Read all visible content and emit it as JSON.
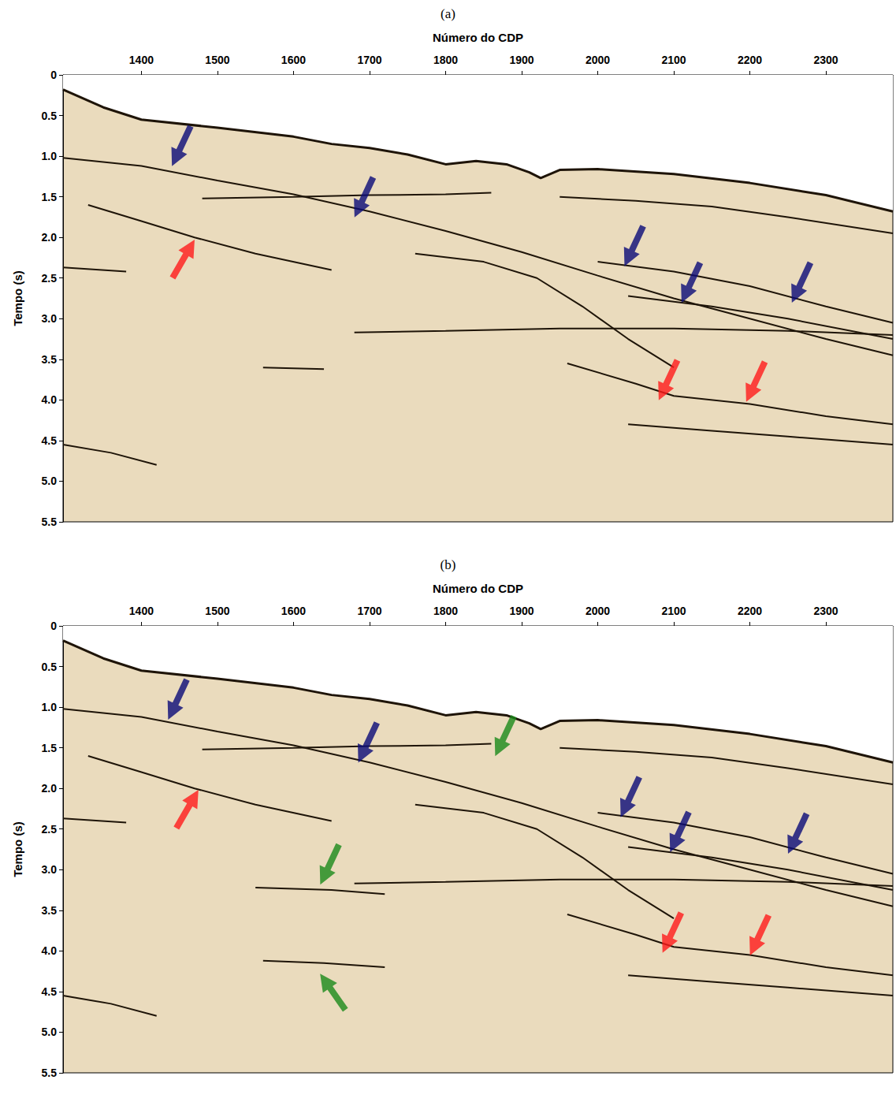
{
  "chart_data": [
    {
      "type": "line",
      "title": "(a)",
      "x_label": "Número do CDP",
      "y_label": "Tempo (s)",
      "xlim": [
        1297,
        2388
      ],
      "xticks": [
        1400,
        1500,
        1600,
        1700,
        1800,
        1900,
        2000,
        2100,
        2200,
        2300
      ],
      "ylim": [
        0,
        5.5
      ],
      "yticks": [
        0,
        0.5,
        {
          "value": 1,
          "label": "1.0"
        },
        1.5,
        {
          "value": 2,
          "label": "2.0"
        },
        2.5,
        {
          "value": 3,
          "label": "3.0"
        },
        3.5,
        {
          "value": 4,
          "label": "4.0"
        },
        4.5,
        {
          "value": 5,
          "label": "5.0"
        },
        5.5
      ],
      "grid": false,
      "series": [
        {
          "type": "line",
          "color": "#1e1408",
          "x": [
            1297,
            1350,
            1400,
            1500,
            1600,
            1650,
            1700,
            1750,
            1800,
            1840,
            1880,
            1910,
            1925,
            1950,
            2000,
            2100,
            2200,
            2300,
            2388
          ],
          "values": [
            0.18,
            0.4,
            0.55,
            0.65,
            0.76,
            0.85,
            0.9,
            0.98,
            1.1,
            1.06,
            1.1,
            1.2,
            1.27,
            1.17,
            1.16,
            1.22,
            1.33,
            1.48,
            1.68
          ]
        },
        {
          "type": "line",
          "color": "#1e1408",
          "x": [
            1297,
            1400,
            1500,
            1600,
            1700,
            1800,
            1900,
            2000,
            2100,
            2200,
            2300,
            2388
          ],
          "values": [
            1.02,
            1.12,
            1.3,
            1.47,
            1.68,
            1.92,
            2.18,
            2.47,
            2.75,
            3.0,
            3.25,
            3.45
          ]
        },
        {
          "type": "line",
          "color": "#1e1408",
          "x": [
            1950,
            2050,
            2150,
            2250,
            2388
          ],
          "values": [
            1.5,
            1.55,
            1.62,
            1.75,
            1.95
          ]
        },
        {
          "type": "line",
          "color": "#1e1408",
          "x": [
            2000,
            2100,
            2200,
            2300,
            2388
          ],
          "values": [
            2.3,
            2.42,
            2.6,
            2.85,
            3.05
          ]
        },
        {
          "type": "line",
          "color": "#1e1408",
          "x": [
            2040,
            2150,
            2250,
            2388
          ],
          "values": [
            2.72,
            2.85,
            3.0,
            3.25
          ]
        },
        {
          "type": "line",
          "color": "#1e1408",
          "x": [
            1680,
            1800,
            1950,
            2100,
            2250,
            2388
          ],
          "values": [
            3.17,
            3.15,
            3.12,
            3.12,
            3.15,
            3.2
          ]
        },
        {
          "type": "line",
          "color": "#1e1408",
          "x": [
            1960,
            2050,
            2100,
            2200,
            2300,
            2388
          ],
          "values": [
            3.55,
            3.8,
            3.95,
            4.05,
            4.2,
            4.3
          ]
        },
        {
          "type": "line",
          "color": "#1e1408",
          "x": [
            2040,
            2150,
            2250,
            2388
          ],
          "values": [
            4.3,
            4.38,
            4.45,
            4.55
          ]
        },
        {
          "type": "line",
          "color": "#1e1408",
          "x": [
            1330,
            1400,
            1470,
            1550,
            1650
          ],
          "values": [
            1.6,
            1.8,
            2.0,
            2.2,
            2.4
          ]
        },
        {
          "type": "line",
          "color": "#1e1408",
          "x": [
            1480,
            1600,
            1700,
            1800,
            1860
          ],
          "values": [
            1.52,
            1.5,
            1.48,
            1.47,
            1.45
          ]
        },
        {
          "type": "line",
          "color": "#1e1408",
          "x": [
            1760,
            1850,
            1920,
            1980,
            2040,
            2100
          ],
          "values": [
            2.2,
            2.3,
            2.5,
            2.85,
            3.25,
            3.6
          ]
        },
        {
          "type": "line",
          "color": "#1e1408",
          "x": [
            1297,
            1380
          ],
          "values": [
            2.37,
            2.42
          ]
        },
        {
          "type": "line",
          "color": "#1e1408",
          "x": [
            1560,
            1640
          ],
          "values": [
            3.6,
            3.62
          ]
        },
        {
          "type": "line",
          "color": "#1e1408",
          "x": [
            1297,
            1360,
            1420
          ],
          "values": [
            4.55,
            4.65,
            4.8
          ]
        },
        {
          "type": "scatter",
          "color": "#0a0a78",
          "marker": "arrow_down_left",
          "x": [
            1440,
            1680,
            2035,
            2110,
            2255
          ],
          "values": [
            1.12,
            1.75,
            2.35,
            2.8,
            2.8
          ]
        },
        {
          "type": "scatter",
          "color": "#ff1a1a",
          "marker": "arrow_up_right",
          "x": [
            1470
          ],
          "values": [
            2.03
          ]
        },
        {
          "type": "scatter",
          "color": "#ff1a1a",
          "marker": "arrow_down_left",
          "x": [
            2080,
            2195
          ],
          "values": [
            4.0,
            4.02
          ]
        }
      ]
    },
    {
      "type": "line",
      "title": "(b)",
      "x_label": "Número do CDP",
      "y_label": "Tempo (s)",
      "xlim": [
        1297,
        2388
      ],
      "xticks": [
        1400,
        1500,
        1600,
        1700,
        1800,
        1900,
        2000,
        2100,
        2200,
        2300
      ],
      "ylim": [
        0,
        5.5
      ],
      "yticks": [
        0,
        0.5,
        {
          "value": 1,
          "label": "1.0"
        },
        1.5,
        {
          "value": 2,
          "label": "2.0"
        },
        2.5,
        {
          "value": 3,
          "label": "3.0"
        },
        3.5,
        {
          "value": 4,
          "label": "4.0"
        },
        4.5,
        {
          "value": 5,
          "label": "5.0"
        },
        5.5
      ],
      "grid": false,
      "series": [
        {
          "type": "line",
          "color": "#1e1408",
          "x": [
            1297,
            1350,
            1400,
            1500,
            1600,
            1650,
            1700,
            1750,
            1800,
            1840,
            1880,
            1910,
            1925,
            1950,
            2000,
            2100,
            2200,
            2300,
            2388
          ],
          "values": [
            0.18,
            0.4,
            0.55,
            0.65,
            0.76,
            0.85,
            0.9,
            0.98,
            1.1,
            1.06,
            1.1,
            1.2,
            1.27,
            1.17,
            1.16,
            1.22,
            1.33,
            1.48,
            1.68
          ]
        },
        {
          "type": "line",
          "color": "#1e1408",
          "x": [
            1297,
            1400,
            1500,
            1600,
            1700,
            1800,
            1900,
            2000,
            2100,
            2200,
            2300,
            2388
          ],
          "values": [
            1.02,
            1.12,
            1.3,
            1.47,
            1.68,
            1.92,
            2.18,
            2.47,
            2.75,
            3.0,
            3.25,
            3.45
          ]
        },
        {
          "type": "line",
          "color": "#1e1408",
          "x": [
            1950,
            2050,
            2150,
            2250,
            2388
          ],
          "values": [
            1.5,
            1.55,
            1.62,
            1.75,
            1.95
          ]
        },
        {
          "type": "line",
          "color": "#1e1408",
          "x": [
            2000,
            2100,
            2200,
            2300,
            2388
          ],
          "values": [
            2.3,
            2.42,
            2.6,
            2.85,
            3.05
          ]
        },
        {
          "type": "line",
          "color": "#1e1408",
          "x": [
            2040,
            2150,
            2250,
            2388
          ],
          "values": [
            2.72,
            2.85,
            3.0,
            3.25
          ]
        },
        {
          "type": "line",
          "color": "#1e1408",
          "x": [
            1680,
            1800,
            1950,
            2100,
            2250,
            2388
          ],
          "values": [
            3.17,
            3.15,
            3.12,
            3.12,
            3.15,
            3.2
          ]
        },
        {
          "type": "line",
          "color": "#1e1408",
          "x": [
            1960,
            2050,
            2100,
            2200,
            2300,
            2388
          ],
          "values": [
            3.55,
            3.8,
            3.95,
            4.05,
            4.2,
            4.3
          ]
        },
        {
          "type": "line",
          "color": "#1e1408",
          "x": [
            2040,
            2150,
            2250,
            2388
          ],
          "values": [
            4.3,
            4.38,
            4.45,
            4.55
          ]
        },
        {
          "type": "line",
          "color": "#1e1408",
          "x": [
            1330,
            1400,
            1470,
            1550,
            1650
          ],
          "values": [
            1.6,
            1.8,
            2.0,
            2.2,
            2.4
          ]
        },
        {
          "type": "line",
          "color": "#1e1408",
          "x": [
            1480,
            1600,
            1700,
            1800,
            1860
          ],
          "values": [
            1.52,
            1.5,
            1.48,
            1.47,
            1.45
          ]
        },
        {
          "type": "line",
          "color": "#1e1408",
          "x": [
            1760,
            1850,
            1920,
            1980,
            2040,
            2100
          ],
          "values": [
            2.2,
            2.3,
            2.5,
            2.85,
            3.25,
            3.6
          ]
        },
        {
          "type": "line",
          "color": "#1e1408",
          "x": [
            1297,
            1380
          ],
          "values": [
            2.37,
            2.42
          ]
        },
        {
          "type": "line",
          "color": "#1e1408",
          "x": [
            1550,
            1650,
            1720
          ],
          "values": [
            3.22,
            3.25,
            3.3
          ]
        },
        {
          "type": "line",
          "color": "#1e1408",
          "x": [
            1560,
            1640,
            1720
          ],
          "values": [
            4.12,
            4.15,
            4.2
          ]
        },
        {
          "type": "line",
          "color": "#1e1408",
          "x": [
            1297,
            1360,
            1420
          ],
          "values": [
            4.55,
            4.65,
            4.8
          ]
        },
        {
          "type": "scatter",
          "color": "#0a0a78",
          "marker": "arrow_down_left",
          "x": [
            1435,
            1685,
            2030,
            2095,
            2250
          ],
          "values": [
            1.15,
            1.68,
            2.35,
            2.78,
            2.8
          ]
        },
        {
          "type": "scatter",
          "color": "#ff1a1a",
          "marker": "arrow_up_right",
          "x": [
            1475
          ],
          "values": [
            2.02
          ]
        },
        {
          "type": "scatter",
          "color": "#ff1a1a",
          "marker": "arrow_down_left",
          "x": [
            2085,
            2200
          ],
          "values": [
            4.02,
            4.05
          ]
        },
        {
          "type": "scatter",
          "color": "#1a8a1a",
          "marker": "arrow_down_left",
          "x": [
            1865,
            1635
          ],
          "values": [
            1.6,
            3.18
          ]
        },
        {
          "type": "scatter",
          "color": "#1a8a1a",
          "marker": "arrow_up_left",
          "x": [
            1635
          ],
          "values": [
            4.28
          ]
        }
      ]
    }
  ]
}
